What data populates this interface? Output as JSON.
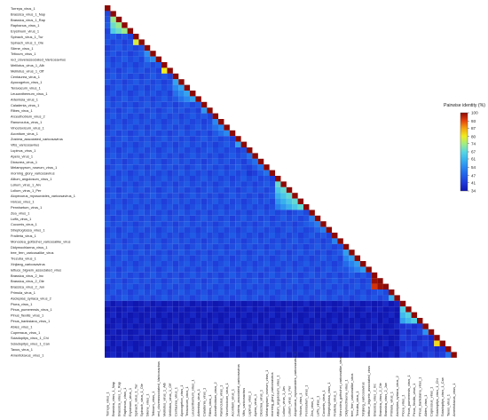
{
  "chart_data": {
    "type": "heatmap",
    "title": "",
    "xlabel": "",
    "ylabel": "",
    "layout": "lower-triangle",
    "legend": {
      "title": "Pairwise identity (%)",
      "ticks": [
        34,
        41,
        47,
        54,
        61,
        67,
        74,
        80,
        87,
        93,
        100
      ],
      "range": [
        34,
        100
      ],
      "colors": [
        "#1016b0",
        "#1f38d8",
        "#2060e8",
        "#2a88f0",
        "#39b3ee",
        "#58d6e2",
        "#a0ec86",
        "#f0ec20",
        "#f4a512",
        "#e6420e",
        "#8c0a06"
      ],
      "placement": "right"
    },
    "labels": [
      "Torreya_virus_1",
      "Brassica_virus_1_Nap",
      "Brassica_virus_1_Rap",
      "Raphanus_virus_1",
      "Erysimum_virus_1",
      "Spinach_virus_1_Tur",
      "Spinach_virus_1_Ole",
      "Silene_virus_1",
      "Triticum_virus_1",
      "red_cloverassociated_Varicosavirus",
      "Melilotus_virus_1_Alb",
      "Melilotus_virus_1_Off",
      "Centaurea_virus_1",
      "Apocogeton_virus_1",
      "Teraxacum_virus_1",
      "Leucanthemum_virus_1",
      "Artemisia_virus_1",
      "Caladenia_virus_1",
      "Ribes_virus_1",
      "Arceuthobium_virus_2",
      "Ranunculus_virus_1",
      "Vincetoxicum_virus_1",
      "Aconitum_virus_1",
      "Zostera_associated_varicosavirus",
      "Vitis_varicosavirus",
      "Lupinus_virus_1",
      "Apera_virus_1",
      "Dioscrea_virus_1",
      "Melampyrum_roseum_virus_1",
      "morning_glory_varicosavirus",
      "Allium_angulosum_virus_1",
      "Lolium_virus_1_Arv",
      "Lolium_virus_1_Per",
      "Alopecurus_myosuroides_varicosavirus_1",
      "Holcus_virus_1",
      "Pennisetum_virus_1",
      "Zea_virus_1",
      "Luffa_virus_1",
      "Cucumis_virus_1",
      "Streptoglossa_virus_1",
      "Fraileria_virus_1",
      "Monoclea_gottschei_varicosalike_virus",
      "Didymochlaena_virus_1",
      "tree_fern_varicosalike_virus",
      "Trezuba_virus_1",
      "Xinjiang_varicosavirus",
      "lettuce_bigvein_associated_virus",
      "Brassica_virus_2_Inc",
      "Brassica_virus_2_Ole",
      "Brassica_virus_2_Jun",
      "Primula_virus_1",
      "Asclepias_syriaca_virus_2",
      "Picea_virus_1",
      "Pinus_pumerensis_virus_1",
      "Pinus_flexilis_virus_1",
      "Pinus_banksiana_virus_1",
      "Abies_virus_1",
      "Cupressus_virus_1",
      "Sciadopitys_virus_1_Chi",
      "Sciadopitys_virus_1_Can",
      "Taxus_virus_1",
      "Amentotaxus_virus_1"
    ],
    "groups": [
      {
        "start": 0,
        "end": 0,
        "within": 100
      },
      {
        "start": 1,
        "end": 4,
        "within": 73
      },
      {
        "start": 5,
        "end": 6,
        "within": 78
      },
      {
        "start": 7,
        "end": 9,
        "within": 55
      },
      {
        "start": 10,
        "end": 11,
        "within": 80
      },
      {
        "start": 12,
        "end": 16,
        "within": 58
      },
      {
        "start": 17,
        "end": 18,
        "within": 56
      },
      {
        "start": 19,
        "end": 22,
        "within": 54
      },
      {
        "start": 23,
        "end": 24,
        "within": 57
      },
      {
        "start": 25,
        "end": 29,
        "within": 50
      },
      {
        "start": 30,
        "end": 35,
        "within": 68
      },
      {
        "start": 36,
        "end": 39,
        "within": 52
      },
      {
        "start": 40,
        "end": 41,
        "within": 53
      },
      {
        "start": 42,
        "end": 46,
        "within": 57
      },
      {
        "start": 47,
        "end": 49,
        "within": 99
      },
      {
        "start": 50,
        "end": 51,
        "within": 60
      },
      {
        "start": 52,
        "end": 55,
        "within": 66
      },
      {
        "start": 56,
        "end": 57,
        "within": 55
      },
      {
        "start": 58,
        "end": 59,
        "within": 82
      },
      {
        "start": 60,
        "end": 61,
        "within": 50
      }
    ],
    "baseline": {
      "angiosperm_to_angiosperm": 44,
      "gymnosperm_to_gymnosperm": 40,
      "angiosperm_to_gymnosperm": 35,
      "gymnosperm_start_index": 52
    },
    "diagonal": 100
  }
}
